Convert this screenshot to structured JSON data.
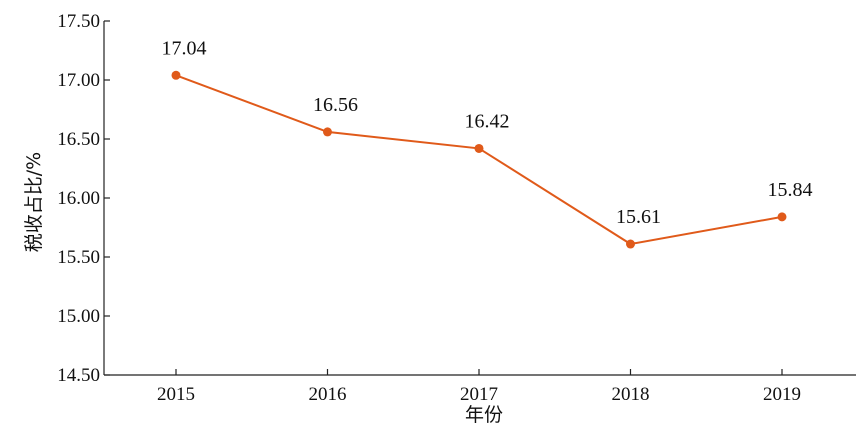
{
  "chart_data": {
    "type": "line",
    "title": "",
    "xlabel": "年份",
    "ylabel": "税收占比/%",
    "x": [
      "2015",
      "2016",
      "2017",
      "2018",
      "2019"
    ],
    "ylim": [
      14.5,
      17.5
    ],
    "yticks": [
      "14.50",
      "15.00",
      "15.50",
      "16.00",
      "16.50",
      "17.00",
      "17.50"
    ],
    "grid": false,
    "legend": "none",
    "series": [
      {
        "values": [
          17.04,
          16.56,
          16.42,
          15.61,
          15.84
        ],
        "labels": [
          "17.04",
          "16.56",
          "16.42",
          "15.61",
          "15.84"
        ],
        "color": "#e05a1a"
      }
    ]
  }
}
